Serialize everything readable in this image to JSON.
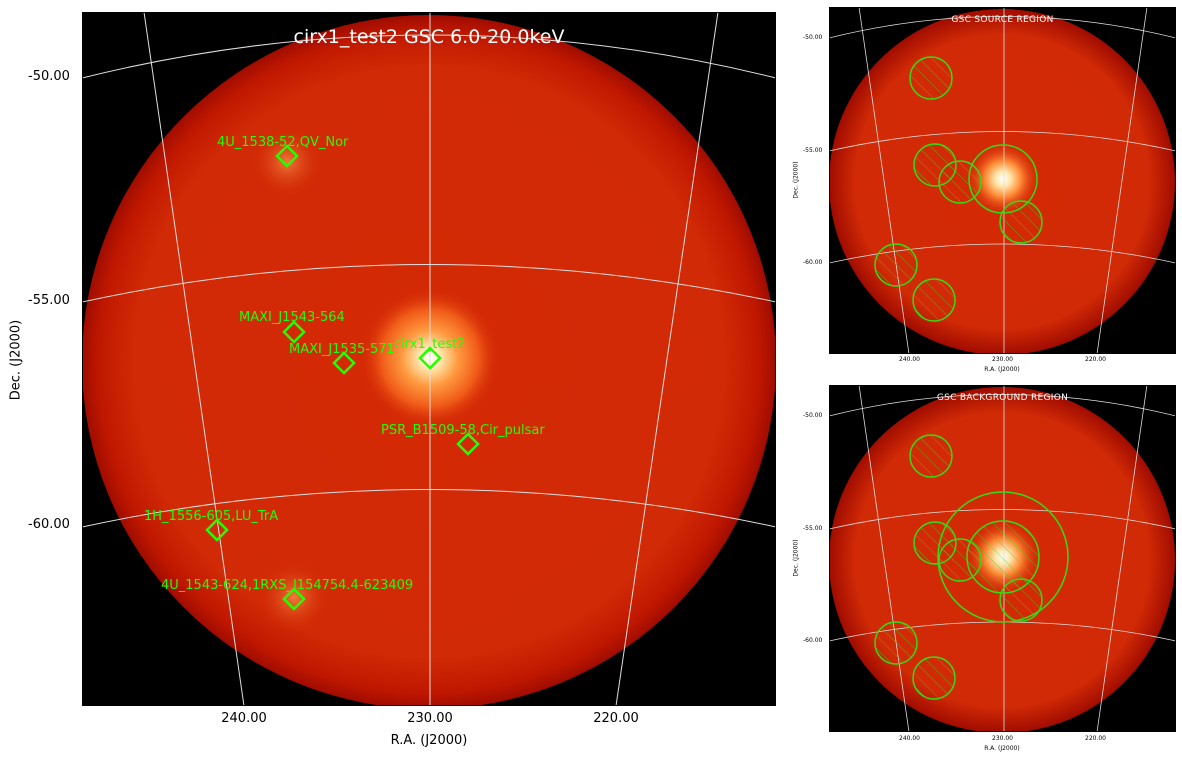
{
  "main": {
    "title": "cirx1_test2 GSC 6.0-20.0keV",
    "xlabel": "R.A. (J2000)",
    "ylabel": "Dec. (J2000)",
    "yticks": [
      "-50.00",
      "-55.00",
      "-60.00"
    ],
    "xticks": [
      "240.00",
      "230.00",
      "220.00"
    ],
    "sources": [
      {
        "label": "4U_1538-52,QV_Nor"
      },
      {
        "label": "MAXI_J1543-564"
      },
      {
        "label": "MAXI_J1535-571"
      },
      {
        "label": "cirx1_test2"
      },
      {
        "label": "PSR_B1509-58,Cir_pulsar"
      },
      {
        "label": "1H_1556-605,LU_TrA"
      },
      {
        "label": "4U_1543-624,1RXS_J154754.4-623409"
      }
    ]
  },
  "source_region": {
    "title": "GSC SOURCE REGION",
    "xlabel": "R.A. (J2000)",
    "ylabel": "Dec. (J2000)",
    "yticks": [
      "-50.00",
      "-55.00",
      "-60.00"
    ],
    "xticks": [
      "240.00",
      "230.00",
      "220.00"
    ]
  },
  "background_region": {
    "title": "GSC BACKGROUND REGION",
    "xlabel": "R.A. (J2000)",
    "ylabel": "Dec. (J2000)",
    "yticks": [
      "-50.00",
      "-55.00",
      "-60.00"
    ],
    "xticks": [
      "240.00",
      "230.00",
      "220.00"
    ]
  },
  "colors": {
    "marker": "#22ff00",
    "region": "#33dd11",
    "grid": "#dddddd"
  }
}
